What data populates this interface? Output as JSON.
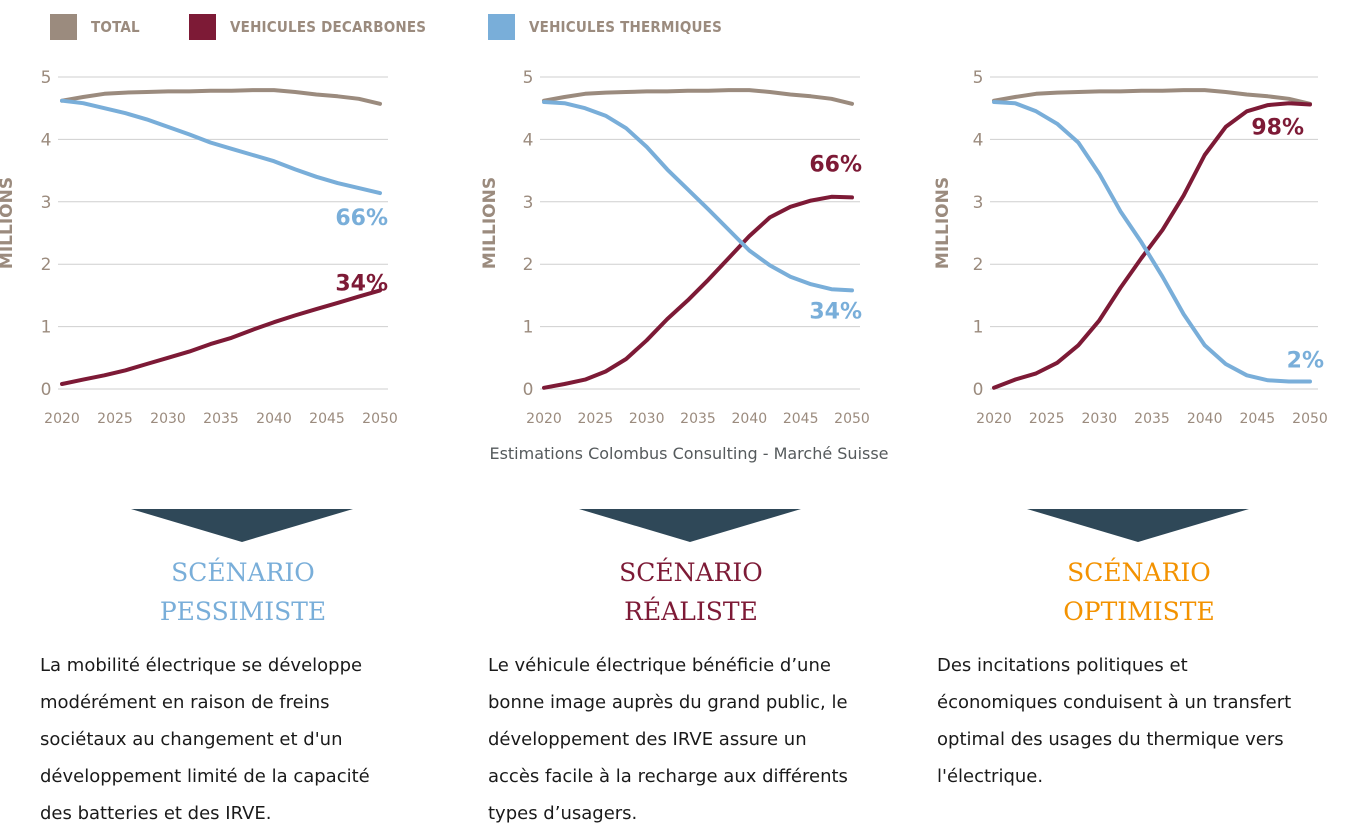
{
  "legend": [
    {
      "label": "TOTAL",
      "color": "#9b8b7e"
    },
    {
      "label": "VEHICULES DECARBONES",
      "color": "#7d1a36"
    },
    {
      "label": "VEHICULES THERMIQUES",
      "color": "#79aed9"
    }
  ],
  "colors": {
    "total": "#9b8b7e",
    "decarbonized": "#7d1a36",
    "thermal": "#79aed9",
    "axis_text": "#9b8b7e",
    "triangle": "#2f4858"
  },
  "source": "Estimations Colombus Consulting - Marché Suisse",
  "scenarios": [
    {
      "title_line1": "SCÉNARIO",
      "title_line2": "PESSIMISTE",
      "color": "#79aed9",
      "description": [
        "La mobilité électrique se développe",
        "modérément en raison de freins",
        "sociétaux au changement et d'un",
        "développement limité de la capacité",
        "des batteries et des IRVE."
      ]
    },
    {
      "title_line1": "SCÉNARIO",
      "title_line2": "RÉALISTE",
      "color": "#7d1a36",
      "description": [
        "Le véhicule électrique bénéficie d’une",
        "bonne image auprès du grand public, le",
        "développement des IRVE assure un",
        "accès facile à la recharge aux différents",
        "types d’usagers."
      ]
    },
    {
      "title_line1": "SCÉNARIO",
      "title_line2": "OPTIMISTE",
      "color": "#f39200",
      "description": [
        "Des incitations politiques et",
        "économiques conduisent à un transfert",
        "optimal des usages du thermique vers",
        "l'électrique."
      ]
    }
  ],
  "chart_data": [
    {
      "type": "line",
      "ylabel": "MILLIONS",
      "xlabel": "",
      "x_ticks": [
        2020,
        2025,
        2030,
        2035,
        2040,
        2045,
        2050
      ],
      "y_ticks": [
        0,
        1,
        2,
        3,
        4,
        5
      ],
      "ylim": [
        0,
        5
      ],
      "xlim": [
        2020,
        2050
      ],
      "grid": true,
      "x": [
        2020,
        2022,
        2024,
        2026,
        2028,
        2030,
        2032,
        2034,
        2036,
        2038,
        2040,
        2042,
        2044,
        2046,
        2048,
        2050
      ],
      "series": [
        {
          "name": "TOTAL",
          "values": [
            4.62,
            4.68,
            4.73,
            4.75,
            4.76,
            4.77,
            4.77,
            4.78,
            4.78,
            4.79,
            4.79,
            4.76,
            4.72,
            4.69,
            4.65,
            4.57
          ]
        },
        {
          "name": "VEHICULES DECARBONES",
          "values": [
            0.08,
            0.15,
            0.22,
            0.3,
            0.4,
            0.5,
            0.6,
            0.72,
            0.82,
            0.95,
            1.07,
            1.18,
            1.28,
            1.38,
            1.48,
            1.58
          ],
          "end_label": "34%"
        },
        {
          "name": "VEHICULES THERMIQUES",
          "values": [
            4.62,
            4.58,
            4.5,
            4.42,
            4.32,
            4.2,
            4.08,
            3.95,
            3.85,
            3.75,
            3.65,
            3.52,
            3.4,
            3.3,
            3.22,
            3.14
          ],
          "end_label": "66%"
        }
      ]
    },
    {
      "type": "line",
      "ylabel": "MILLIONS",
      "xlabel": "",
      "x_ticks": [
        2020,
        2025,
        2030,
        2035,
        2040,
        2045,
        2050
      ],
      "y_ticks": [
        0,
        1,
        2,
        3,
        4,
        5
      ],
      "ylim": [
        0,
        5
      ],
      "xlim": [
        2020,
        2050
      ],
      "grid": true,
      "x": [
        2020,
        2022,
        2024,
        2026,
        2028,
        2030,
        2032,
        2034,
        2036,
        2038,
        2040,
        2042,
        2044,
        2046,
        2048,
        2050
      ],
      "series": [
        {
          "name": "TOTAL",
          "values": [
            4.62,
            4.68,
            4.73,
            4.75,
            4.76,
            4.77,
            4.77,
            4.78,
            4.78,
            4.79,
            4.79,
            4.76,
            4.72,
            4.69,
            4.65,
            4.57
          ]
        },
        {
          "name": "VEHICULES DECARBONES",
          "values": [
            0.02,
            0.08,
            0.15,
            0.28,
            0.48,
            0.78,
            1.12,
            1.42,
            1.75,
            2.1,
            2.45,
            2.75,
            2.92,
            3.02,
            3.08,
            3.07
          ],
          "end_label": "66%"
        },
        {
          "name": "VEHICULES THERMIQUES",
          "values": [
            4.6,
            4.58,
            4.5,
            4.38,
            4.18,
            3.88,
            3.52,
            3.2,
            2.88,
            2.55,
            2.22,
            1.98,
            1.8,
            1.68,
            1.6,
            1.58
          ],
          "end_label": "34%"
        }
      ]
    },
    {
      "type": "line",
      "ylabel": "MILLIONS",
      "xlabel": "",
      "x_ticks": [
        2020,
        2025,
        2030,
        2035,
        2040,
        2045,
        2050
      ],
      "y_ticks": [
        0,
        1,
        2,
        3,
        4,
        5
      ],
      "ylim": [
        0,
        5
      ],
      "xlim": [
        2020,
        2050
      ],
      "grid": true,
      "x": [
        2020,
        2022,
        2024,
        2026,
        2028,
        2030,
        2032,
        2034,
        2036,
        2038,
        2040,
        2042,
        2044,
        2046,
        2048,
        2050
      ],
      "series": [
        {
          "name": "TOTAL",
          "values": [
            4.62,
            4.68,
            4.73,
            4.75,
            4.76,
            4.77,
            4.77,
            4.78,
            4.78,
            4.79,
            4.79,
            4.76,
            4.72,
            4.69,
            4.65,
            4.57
          ]
        },
        {
          "name": "VEHICULES DECARBONES",
          "values": [
            0.02,
            0.15,
            0.25,
            0.42,
            0.7,
            1.1,
            1.62,
            2.1,
            2.55,
            3.1,
            3.75,
            4.2,
            4.45,
            4.55,
            4.58,
            4.56
          ],
          "end_label": "98%"
        },
        {
          "name": "VEHICULES THERMIQUES",
          "values": [
            4.6,
            4.58,
            4.45,
            4.25,
            3.95,
            3.45,
            2.85,
            2.35,
            1.8,
            1.2,
            0.7,
            0.4,
            0.22,
            0.14,
            0.12,
            0.12
          ],
          "end_label": "2%"
        }
      ]
    }
  ]
}
